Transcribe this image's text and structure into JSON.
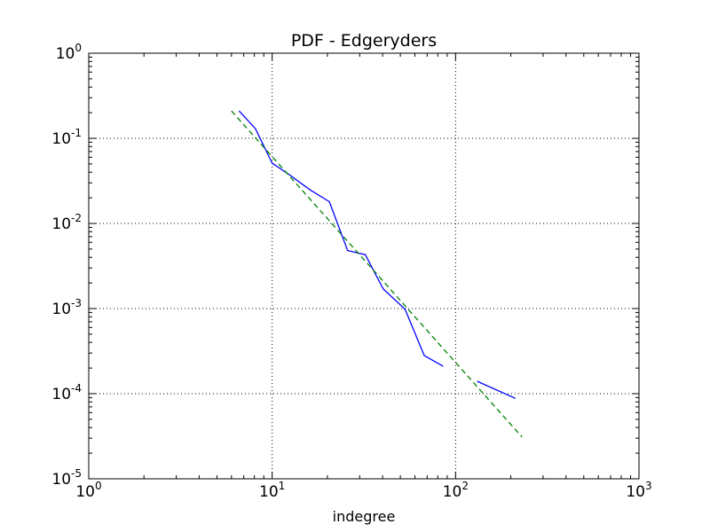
{
  "chart_data": {
    "type": "line",
    "title": "PDF - Edgeryders",
    "xlabel": "indegree",
    "ylabel": "",
    "xscale": "log",
    "yscale": "log",
    "xlim": [
      1,
      1000
    ],
    "ylim": [
      1e-05,
      1
    ],
    "grid": true,
    "x_ticks": [
      {
        "base": "10",
        "exp": "0",
        "value": 1
      },
      {
        "base": "10",
        "exp": "1",
        "value": 10
      },
      {
        "base": "10",
        "exp": "2",
        "value": 100
      },
      {
        "base": "10",
        "exp": "3",
        "value": 1000
      }
    ],
    "y_ticks": [
      {
        "base": "10",
        "exp": "0",
        "value": 1
      },
      {
        "base": "10",
        "exp": "-1",
        "value": 0.1
      },
      {
        "base": "10",
        "exp": "-2",
        "value": 0.01
      },
      {
        "base": "10",
        "exp": "-3",
        "value": 0.001
      },
      {
        "base": "10",
        "exp": "-4",
        "value": 0.0001
      },
      {
        "base": "10",
        "exp": "-5",
        "value": 1e-05
      }
    ],
    "series": [
      {
        "color": "#0000ff",
        "style": "solid",
        "segments": [
          [
            [
              6.6,
              0.21
            ],
            [
              8.1,
              0.13
            ],
            [
              10.0,
              0.051
            ],
            [
              12.5,
              0.037
            ],
            [
              16.0,
              0.025
            ],
            [
              20.5,
              0.018
            ],
            [
              25.8,
              0.0048
            ],
            [
              32.2,
              0.0043
            ],
            [
              40.3,
              0.0017
            ],
            [
              53.0,
              0.00098
            ],
            [
              67.5,
              0.00028
            ],
            [
              85.5,
              0.00021
            ]
          ],
          [
            [
              131.0,
              0.00014
            ],
            [
              212.0,
              8.8e-05
            ]
          ]
        ]
      },
      {
        "color": "#008000",
        "style": "dashed",
        "segments": [
          [
            [
              6.0,
              0.21
            ],
            [
              230.0,
              3.1e-05
            ]
          ]
        ]
      }
    ]
  }
}
